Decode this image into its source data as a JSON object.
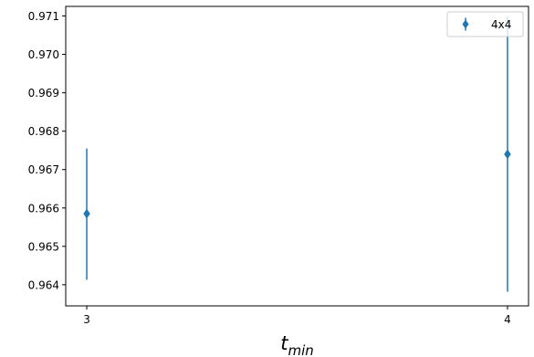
{
  "chart_data": {
    "type": "scatter",
    "title": "",
    "xlabel": {
      "main": "t",
      "sub": "min"
    },
    "ylabel": "",
    "xlim": [
      2.95,
      4.05
    ],
    "ylim": [
      0.96345,
      0.97125
    ],
    "x_ticks": [
      3,
      4
    ],
    "x_tick_labels": [
      "3",
      "4"
    ],
    "y_ticks": [
      0.964,
      0.965,
      0.966,
      0.967,
      0.968,
      0.969,
      0.97,
      0.971
    ],
    "y_tick_labels": [
      "0.964",
      "0.965",
      "0.966",
      "0.967",
      "0.968",
      "0.969",
      "0.970",
      "0.971"
    ],
    "grid": false,
    "legend_position": "top-right",
    "series": [
      {
        "name": "4x4",
        "color": "#1f77b4",
        "marker": "thin-diamond",
        "points": [
          {
            "x": 3,
            "y": 0.96585,
            "yerr_low": 0.96413,
            "yerr_high": 0.96755
          },
          {
            "x": 4,
            "y": 0.9674,
            "yerr_low": 0.96382,
            "yerr_high": 0.97098
          }
        ]
      }
    ]
  }
}
